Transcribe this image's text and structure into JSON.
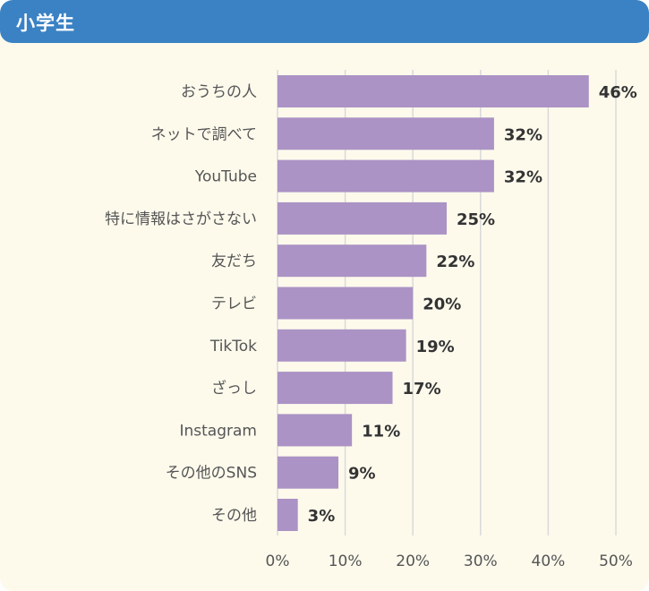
{
  "header": {
    "title": "小学生"
  },
  "chart_data": {
    "type": "bar",
    "orientation": "horizontal",
    "title": "小学生",
    "categories": [
      "おうちの人",
      "ネットで調べて",
      "YouTube",
      "特に情報はさがさない",
      "友だち",
      "テレビ",
      "TikTok",
      "ざっし",
      "Instagram",
      "その他のSNS",
      "その他"
    ],
    "values": [
      46,
      32,
      32,
      25,
      22,
      20,
      19,
      17,
      11,
      9,
      3
    ],
    "value_labels": [
      "46%",
      "32%",
      "32%",
      "25%",
      "22%",
      "20%",
      "19%",
      "17%",
      "11%",
      "9%",
      "3%"
    ],
    "xlim": [
      0,
      50
    ],
    "xticks": [
      0,
      10,
      20,
      30,
      40,
      50
    ],
    "xtick_labels": [
      "0%",
      "10%",
      "20%",
      "30%",
      "40%",
      "50%"
    ],
    "grid": true,
    "bar_color": "#ab93c5",
    "grid_color": "#d9d9d9"
  }
}
